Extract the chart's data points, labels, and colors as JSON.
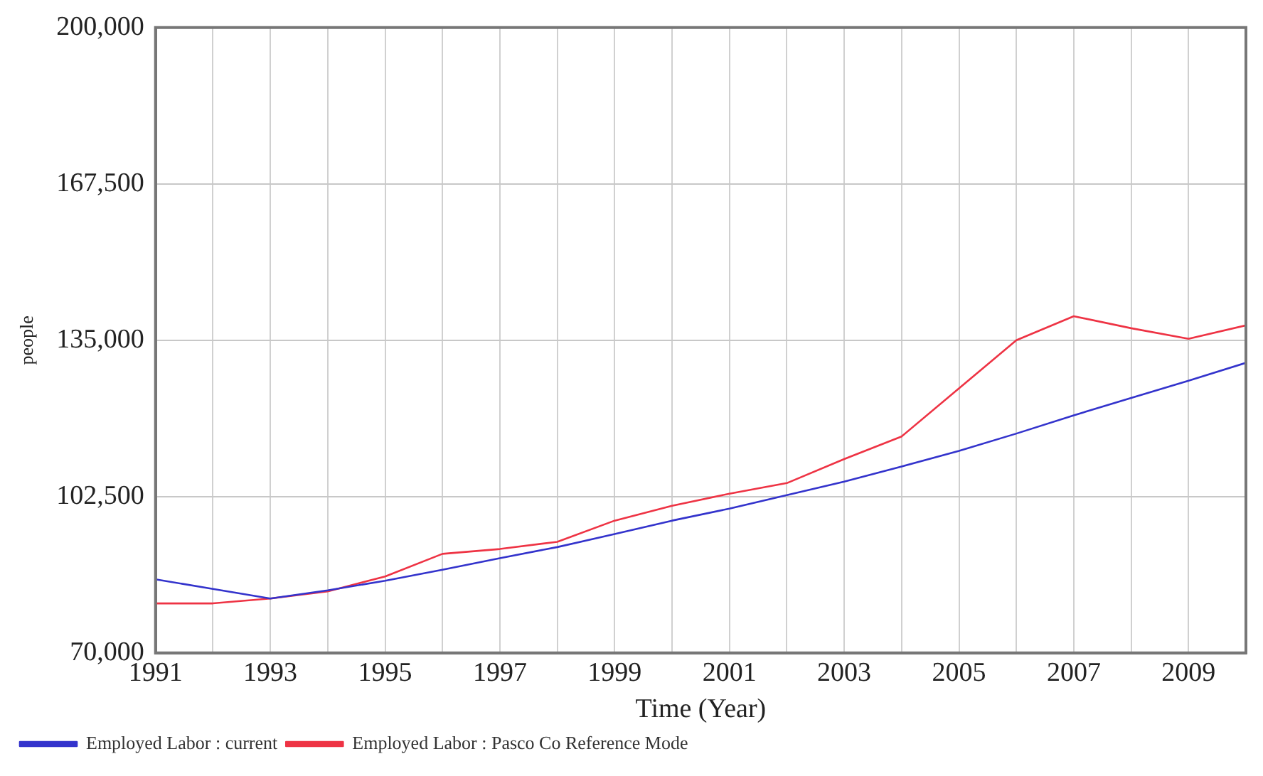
{
  "chart_data": {
    "type": "line",
    "xlabel": "Time (Year)",
    "ylabel": "people",
    "x": [
      1991,
      1992,
      1993,
      1994,
      1995,
      1996,
      1997,
      1998,
      1999,
      2000,
      2001,
      2002,
      2003,
      2004,
      2005,
      2006,
      2007,
      2008,
      2009,
      2010
    ],
    "series": [
      {
        "name": "Employed Labor : current",
        "color": "#3333cc",
        "values": [
          85300,
          83300,
          81300,
          83000,
          85000,
          87300,
          89700,
          92000,
          94700,
          97500,
          100000,
          102800,
          105600,
          108750,
          112000,
          115600,
          119400,
          123000,
          126600,
          130300
        ]
      },
      {
        "name": "Employed Labor : Pasco Co Reference Mode",
        "color": "#ee3344",
        "values": [
          80300,
          80300,
          81300,
          82800,
          85900,
          90600,
          91600,
          93100,
          97500,
          100600,
          103100,
          105300,
          110300,
          115000,
          125000,
          135000,
          140000,
          137500,
          135300,
          138100
        ]
      }
    ],
    "xlim": [
      1991,
      2010
    ],
    "xticks": [
      1991,
      {
        "value": 1992,
        "label": null
      },
      1993,
      {
        "value": 1994,
        "label": null
      },
      1995,
      {
        "value": 1996,
        "label": null
      },
      1997,
      {
        "value": 1998,
        "label": null
      },
      1999,
      {
        "value": 2000,
        "label": null
      },
      2001,
      {
        "value": 2002,
        "label": null
      },
      2003,
      {
        "value": 2004,
        "label": null
      },
      2005,
      {
        "value": 2006,
        "label": null
      },
      2007,
      {
        "value": 2008,
        "label": null
      },
      2009,
      {
        "value": 2010,
        "label": null
      }
    ],
    "ylim": [
      70000,
      200000
    ],
    "yticks": [
      {
        "value": 70000,
        "label": "70,000"
      },
      {
        "value": 102500,
        "label": "102,500"
      },
      {
        "value": 135000,
        "label": "135,000"
      },
      {
        "value": 167500,
        "label": "167,500"
      },
      {
        "value": 200000,
        "label": "200,000"
      }
    ],
    "grid": true,
    "legend": "bottom",
    "marker": "none",
    "line_style": "solid"
  }
}
